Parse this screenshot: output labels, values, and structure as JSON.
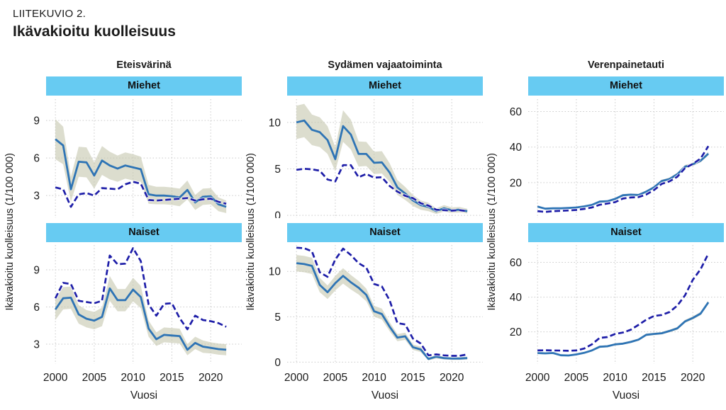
{
  "page": {
    "eyebrow": "LIITEKUVIO 2.",
    "title": "Ikävakioitu kuolleisuus"
  },
  "colors": {
    "solid_line": "#2e74b5",
    "dashed_line": "#1e1ea8",
    "band": "#c5c7ad",
    "facet_header_bg": "#67cbf2",
    "grid": "#c9c9c9",
    "text": "#1a1a1a"
  },
  "chart_data": [
    {
      "type": "line",
      "title": "Eteisvärinä",
      "xlabel": "Vuosi",
      "ylabel": "Ikävakioitu kuolleisuus (1/100 000)",
      "x_years": {
        "start": 2000,
        "end": 2022
      },
      "xticks": [
        2000,
        2005,
        2010,
        2015,
        2020
      ],
      "xlim": [
        1998.8,
        2024
      ],
      "facets": [
        {
          "label": "Miehet",
          "ylim": [
            1.2,
            10.7
          ],
          "yticks": [
            3,
            6,
            9
          ],
          "series": [
            {
              "name": "solid",
              "style": "solid",
              "color": "#2e74b5",
              "values": [
                7.5,
                7.0,
                3.5,
                5.7,
                5.65,
                4.6,
                5.8,
                5.4,
                5.15,
                5.4,
                5.25,
                5.1,
                3.1,
                3.0,
                3.0,
                2.95,
                2.85,
                3.45,
                2.45,
                2.9,
                2.95,
                2.3,
                2.1
              ]
            },
            {
              "name": "dashed",
              "style": "dashed",
              "color": "#1e1ea8",
              "values": [
                3.65,
                3.5,
                2.1,
                3.1,
                3.2,
                3.0,
                3.6,
                3.55,
                3.5,
                3.9,
                4.1,
                3.95,
                2.65,
                2.6,
                2.65,
                2.7,
                2.75,
                2.8,
                2.6,
                2.7,
                2.75,
                2.5,
                2.35
              ]
            }
          ],
          "band": {
            "around": "solid",
            "color": "#c5c7ad",
            "delta": [
              1.6,
              1.5,
              1.0,
              1.2,
              1.2,
              1.05,
              1.15,
              1.1,
              1.05,
              1.05,
              1.05,
              1.0,
              0.75,
              0.7,
              0.7,
              0.7,
              0.7,
              0.75,
              0.6,
              0.65,
              0.65,
              0.55,
              0.5
            ]
          }
        },
        {
          "label": "Naiset",
          "ylim": [
            1.4,
            11.0
          ],
          "yticks": [
            3,
            6,
            9
          ],
          "series": [
            {
              "name": "solid",
              "style": "solid",
              "color": "#2e74b5",
              "values": [
                5.8,
                6.7,
                6.75,
                5.4,
                5.05,
                4.9,
                5.2,
                7.5,
                6.55,
                6.55,
                7.4,
                6.8,
                4.25,
                3.4,
                3.75,
                3.7,
                3.65,
                2.55,
                3.1,
                2.8,
                2.7,
                2.6,
                2.55
              ]
            },
            {
              "name": "dashed",
              "style": "dashed",
              "color": "#1e1ea8",
              "values": [
                6.7,
                7.95,
                7.85,
                6.5,
                6.4,
                6.3,
                6.5,
                10.15,
                9.45,
                9.5,
                10.75,
                9.7,
                6.2,
                5.3,
                6.25,
                6.3,
                5.1,
                4.2,
                5.3,
                4.95,
                4.85,
                4.7,
                4.4
              ]
            }
          ],
          "band": {
            "around": "solid",
            "color": "#c5c7ad",
            "delta": [
              0.85,
              0.9,
              0.9,
              0.75,
              0.7,
              0.7,
              0.75,
              1.0,
              0.9,
              0.9,
              0.95,
              0.9,
              0.65,
              0.55,
              0.6,
              0.6,
              0.6,
              0.45,
              0.5,
              0.5,
              0.45,
              0.45,
              0.45
            ]
          }
        }
      ]
    },
    {
      "type": "line",
      "title": "Sydämen vajaatoiminta",
      "xlabel": "Vuosi",
      "ylabel": "Ikävakioitu kuolleisuus (1/100 000)",
      "x_years": {
        "start": 2000,
        "end": 2022
      },
      "xticks": [
        2000,
        2005,
        2010,
        2015,
        2020
      ],
      "xlim": [
        1998.8,
        2024
      ],
      "facets": [
        {
          "label": "Miehet",
          "ylim": [
            -0.3,
            12.5
          ],
          "yticks": [
            0,
            5,
            10
          ],
          "series": [
            {
              "name": "solid",
              "style": "solid",
              "color": "#2e74b5",
              "values": [
                10.0,
                10.2,
                9.2,
                8.95,
                8.1,
                6.05,
                9.6,
                8.7,
                6.6,
                6.6,
                5.65,
                5.7,
                4.6,
                3.0,
                2.35,
                1.6,
                1.1,
                0.9,
                0.45,
                0.75,
                0.55,
                0.6,
                0.45
              ]
            },
            {
              "name": "dashed",
              "style": "dashed",
              "color": "#1e1ea8",
              "values": [
                4.9,
                5.0,
                4.95,
                4.8,
                3.85,
                3.65,
                5.4,
                5.4,
                4.1,
                4.45,
                4.05,
                4.1,
                3.15,
                2.55,
                2.1,
                1.85,
                1.3,
                1.05,
                0.6,
                0.55,
                0.5,
                0.55,
                0.45
              ]
            }
          ],
          "band": {
            "around": "solid",
            "color": "#c5c7ad",
            "delta": [
              1.8,
              1.8,
              1.65,
              1.6,
              1.5,
              1.3,
              1.7,
              1.6,
              1.35,
              1.3,
              1.2,
              1.2,
              1.0,
              0.8,
              0.7,
              0.6,
              0.5,
              0.45,
              0.3,
              0.35,
              0.3,
              0.3,
              0.25
            ]
          }
        },
        {
          "label": "Naiset",
          "ylim": [
            -0.2,
            12.9
          ],
          "yticks": [
            0,
            5,
            10
          ],
          "series": [
            {
              "name": "solid",
              "style": "solid",
              "color": "#2e74b5",
              "values": [
                10.9,
                10.8,
                10.6,
                8.5,
                7.7,
                8.7,
                9.5,
                8.8,
                8.2,
                7.4,
                5.6,
                5.3,
                3.9,
                2.7,
                2.85,
                1.65,
                1.4,
                0.35,
                0.6,
                0.45,
                0.4,
                0.4,
                0.45
              ]
            },
            {
              "name": "dashed",
              "style": "dashed",
              "color": "#1e1ea8",
              "values": [
                12.6,
                12.55,
                12.2,
                9.9,
                9.4,
                11.3,
                12.5,
                11.8,
                10.9,
                10.4,
                8.6,
                8.35,
                6.8,
                4.3,
                4.15,
                2.6,
                2.05,
                0.75,
                0.85,
                0.75,
                0.7,
                0.7,
                0.85
              ]
            }
          ],
          "band": {
            "around": "solid",
            "color": "#c5c7ad",
            "delta": [
              0.9,
              0.9,
              0.9,
              0.8,
              0.75,
              0.8,
              0.85,
              0.8,
              0.75,
              0.7,
              0.6,
              0.6,
              0.5,
              0.4,
              0.4,
              0.3,
              0.3,
              0.15,
              0.2,
              0.15,
              0.15,
              0.15,
              0.15
            ]
          }
        }
      ]
    },
    {
      "type": "line",
      "title": "Verenpainetauti",
      "xlabel": "Vuosi",
      "ylabel": "Ikävakioitu kuolleisuus (1/100 000)",
      "x_years": {
        "start": 2000,
        "end": 2022
      },
      "xticks": [
        2000,
        2005,
        2010,
        2015,
        2020
      ],
      "xlim": [
        1998.8,
        2024
      ],
      "facets": [
        {
          "label": "Miehet",
          "ylim": [
            0,
            67
          ],
          "yticks": [
            20,
            40,
            60
          ],
          "series": [
            {
              "name": "solid",
              "style": "solid",
              "color": "#2e74b5",
              "values": [
                6.5,
                5.3,
                5.5,
                5.5,
                5.7,
                6.0,
                6.6,
                7.4,
                9.3,
                9.5,
                10.8,
                12.9,
                13.2,
                13.0,
                14.9,
                17.3,
                20.9,
                22.0,
                24.7,
                29.0,
                30.3,
                32.3,
                36.3
              ]
            },
            {
              "name": "dashed",
              "style": "dashed",
              "color": "#1e1ea8",
              "values": [
                3.9,
                3.5,
                3.9,
                4.1,
                4.3,
                4.6,
                5.2,
                6.0,
                7.5,
                8.2,
                9.0,
                11.0,
                11.6,
                11.8,
                13.3,
                15.8,
                19.3,
                20.7,
                23.3,
                28.2,
                30.5,
                33.5,
                40.5
              ]
            }
          ],
          "band": {
            "around": "solid",
            "color": "#c5c7ad",
            "delta": [
              0.5,
              0.45,
              0.45,
              0.45,
              0.45,
              0.45,
              0.5,
              0.5,
              0.55,
              0.55,
              0.6,
              0.6,
              0.6,
              0.6,
              0.65,
              0.7,
              0.75,
              0.8,
              0.85,
              0.9,
              0.9,
              0.95,
              1.0
            ]
          }
        },
        {
          "label": "Naiset",
          "ylim": [
            1.5,
            70
          ],
          "yticks": [
            20,
            40,
            60
          ],
          "series": [
            {
              "name": "solid",
              "style": "solid",
              "color": "#2e74b5",
              "values": [
                7.8,
                7.6,
                7.8,
                6.5,
                6.4,
                7.0,
                7.9,
                9.3,
                11.4,
                11.7,
                12.8,
                13.2,
                14.2,
                15.5,
                18.3,
                18.8,
                19.2,
                20.5,
                22.0,
                26.0,
                28.0,
                30.5,
                37.0
              ]
            },
            {
              "name": "dashed",
              "style": "dashed",
              "color": "#1e1ea8",
              "values": [
                9.3,
                9.4,
                9.3,
                9.2,
                9.1,
                9.3,
                10.4,
                12.8,
                16.5,
                17.0,
                18.8,
                19.6,
                21.2,
                24.0,
                27.0,
                29.1,
                29.7,
                31.4,
                35.1,
                41.0,
                50.0,
                56.0,
                65.0
              ]
            }
          ],
          "band": {
            "around": "solid",
            "color": "#c5c7ad",
            "delta": [
              0.5,
              0.5,
              0.5,
              0.45,
              0.45,
              0.45,
              0.5,
              0.55,
              0.6,
              0.6,
              0.6,
              0.6,
              0.65,
              0.65,
              0.7,
              0.7,
              0.7,
              0.75,
              0.8,
              0.85,
              0.9,
              0.95,
              1.0
            ]
          }
        }
      ]
    }
  ]
}
